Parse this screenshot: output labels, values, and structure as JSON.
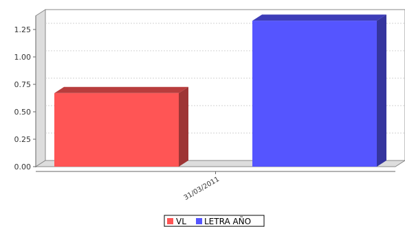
{
  "chart_data": {
    "type": "bar",
    "title": "",
    "xlabel": "",
    "ylabel": "",
    "categories": [
      "31/03/2011"
    ],
    "series": [
      {
        "name": "VL",
        "values": [
          0.67
        ],
        "color": "#ff5555"
      },
      {
        "name": "LETRA AÑO",
        "values": [
          1.33
        ],
        "color": "#5555ff"
      }
    ],
    "yticks": [
      "0.00",
      "0.25",
      "0.50",
      "0.75",
      "1.00",
      "1.25"
    ],
    "ylim": [
      0,
      1.35
    ],
    "grid": true,
    "three_d": true,
    "legend": {
      "position": "bottom",
      "bordered": true
    }
  }
}
